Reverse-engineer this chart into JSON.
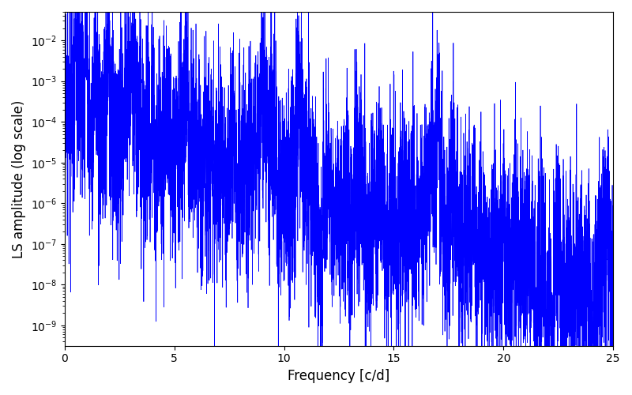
{
  "title": "",
  "xlabel": "Frequency [c/d]",
  "ylabel": "LS amplitude (log scale)",
  "xlim": [
    0,
    25
  ],
  "ylim_log": [
    -9.5,
    -1.3
  ],
  "line_color": "#0000ff",
  "line_width": 0.5,
  "yscale": "log",
  "figsize": [
    8.0,
    5.0
  ],
  "dpi": 100,
  "freq_max": 25.0,
  "n_points": 8000,
  "seed": 17
}
